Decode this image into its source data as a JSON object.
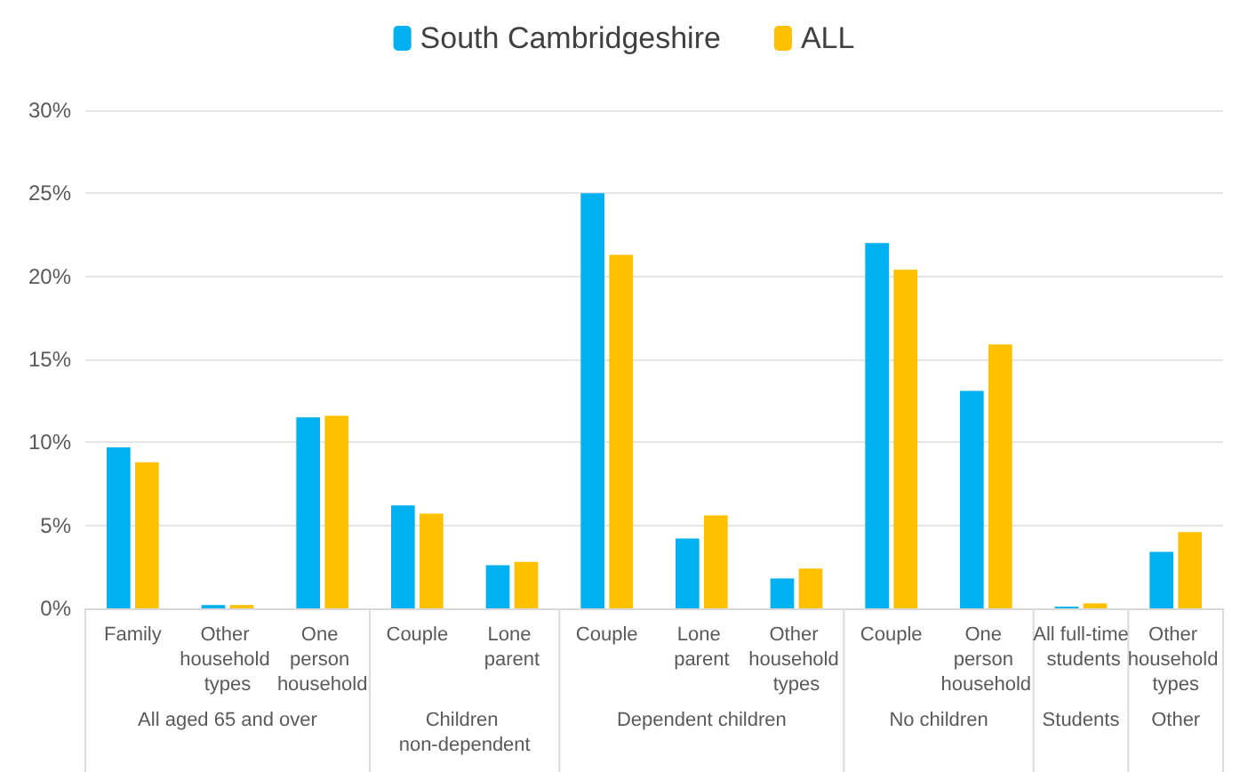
{
  "chart_data": {
    "type": "bar",
    "categories": [
      "Family",
      "Other household types",
      "One person household",
      "Couple",
      "Lone parent",
      "Couple",
      "Lone parent",
      "Other household types",
      "Couple",
      "One person household",
      "All full-time students",
      "Other household types"
    ],
    "series": [
      {
        "name": "South Cambridgeshire",
        "color": "#00b0f0",
        "values": [
          9.7,
          0.2,
          11.5,
          6.2,
          2.6,
          25.0,
          4.2,
          1.8,
          22.0,
          13.1,
          0.1,
          3.4
        ]
      },
      {
        "name": "ALL",
        "color": "#ffc000",
        "values": [
          8.8,
          0.2,
          11.6,
          5.7,
          2.8,
          21.3,
          5.6,
          2.4,
          20.4,
          15.9,
          0.3,
          4.6
        ]
      }
    ],
    "ylim": [
      0,
      30
    ],
    "yticks": [
      {
        "value": 0,
        "label": "0%"
      },
      {
        "value": 5,
        "label": "5%"
      },
      {
        "value": 10,
        "label": "10%"
      },
      {
        "value": 15,
        "label": "15%"
      },
      {
        "value": 20,
        "label": "20%"
      },
      {
        "value": 25,
        "label": "25%"
      },
      {
        "value": 30,
        "label": "30%"
      }
    ],
    "grid": "y",
    "legend": "top",
    "annotations": [
      "All aged 65 and over",
      "Children non-dependent",
      "Dependent children",
      "No children",
      "Students",
      "Other"
    ]
  }
}
